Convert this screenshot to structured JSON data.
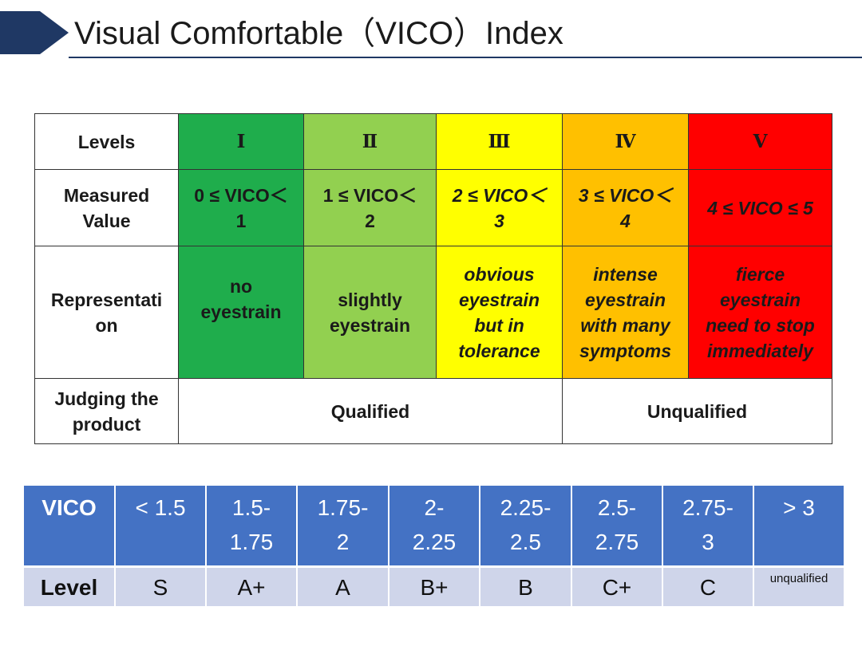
{
  "title": "Visual Comfortable（VICO）Index",
  "colors": {
    "level1": "#1fad4c",
    "level2": "#92d050",
    "level3": "#ffff00",
    "level4": "#ffc000",
    "level5": "#ff0000",
    "header_blue": "#1f3864",
    "table2_header": "#4472c4",
    "table2_row": "#cfd5ea"
  },
  "levels_table": {
    "row_headers": {
      "levels": "Levels",
      "measured_1": "Measured",
      "measured_2": "Value",
      "repr_1": "Representati",
      "repr_2": "on",
      "judging_1": "Judging the",
      "judging_2": "product"
    },
    "levels": [
      "Ⅰ",
      "Ⅱ",
      "Ⅲ",
      "Ⅳ",
      "Ⅴ"
    ],
    "measured": [
      {
        "l1": "0 ≤ VICO＜",
        "l2": "1"
      },
      {
        "l1": "1 ≤ VICO＜",
        "l2": "2"
      },
      {
        "l1": "2 ≤ VICO＜",
        "l2": "3"
      },
      {
        "l1": "3 ≤ VICO＜",
        "l2": "4"
      },
      {
        "l1": "4 ≤ VICO ≤ 5",
        "l2": ""
      }
    ],
    "representation": [
      [
        "no",
        "eyestrain"
      ],
      [
        "slightly",
        "eyestrain"
      ],
      [
        "obvious",
        "eyestrain",
        "but in",
        "tolerance"
      ],
      [
        "intense",
        "eyestrain",
        "with many",
        "symptoms"
      ],
      [
        "fierce",
        "eyestrain",
        "need to stop",
        "immediately"
      ]
    ],
    "judging": {
      "qualified": "Qualified",
      "unqualified": "Unqualified"
    }
  },
  "grade_table": {
    "vico_label": "VICO",
    "level_label": "Level",
    "ranges": [
      [
        "< 1.5",
        ""
      ],
      [
        "1.5-",
        "1.75"
      ],
      [
        "1.75-",
        "2"
      ],
      [
        "2-",
        "2.25"
      ],
      [
        "2.25-",
        "2.5"
      ],
      [
        "2.5-",
        "2.75"
      ],
      [
        "2.75-",
        "3"
      ],
      [
        "> 3",
        ""
      ]
    ],
    "grades": [
      "S",
      "A+",
      "A",
      "B+",
      "B",
      "C+",
      "C",
      "unqualified"
    ]
  }
}
